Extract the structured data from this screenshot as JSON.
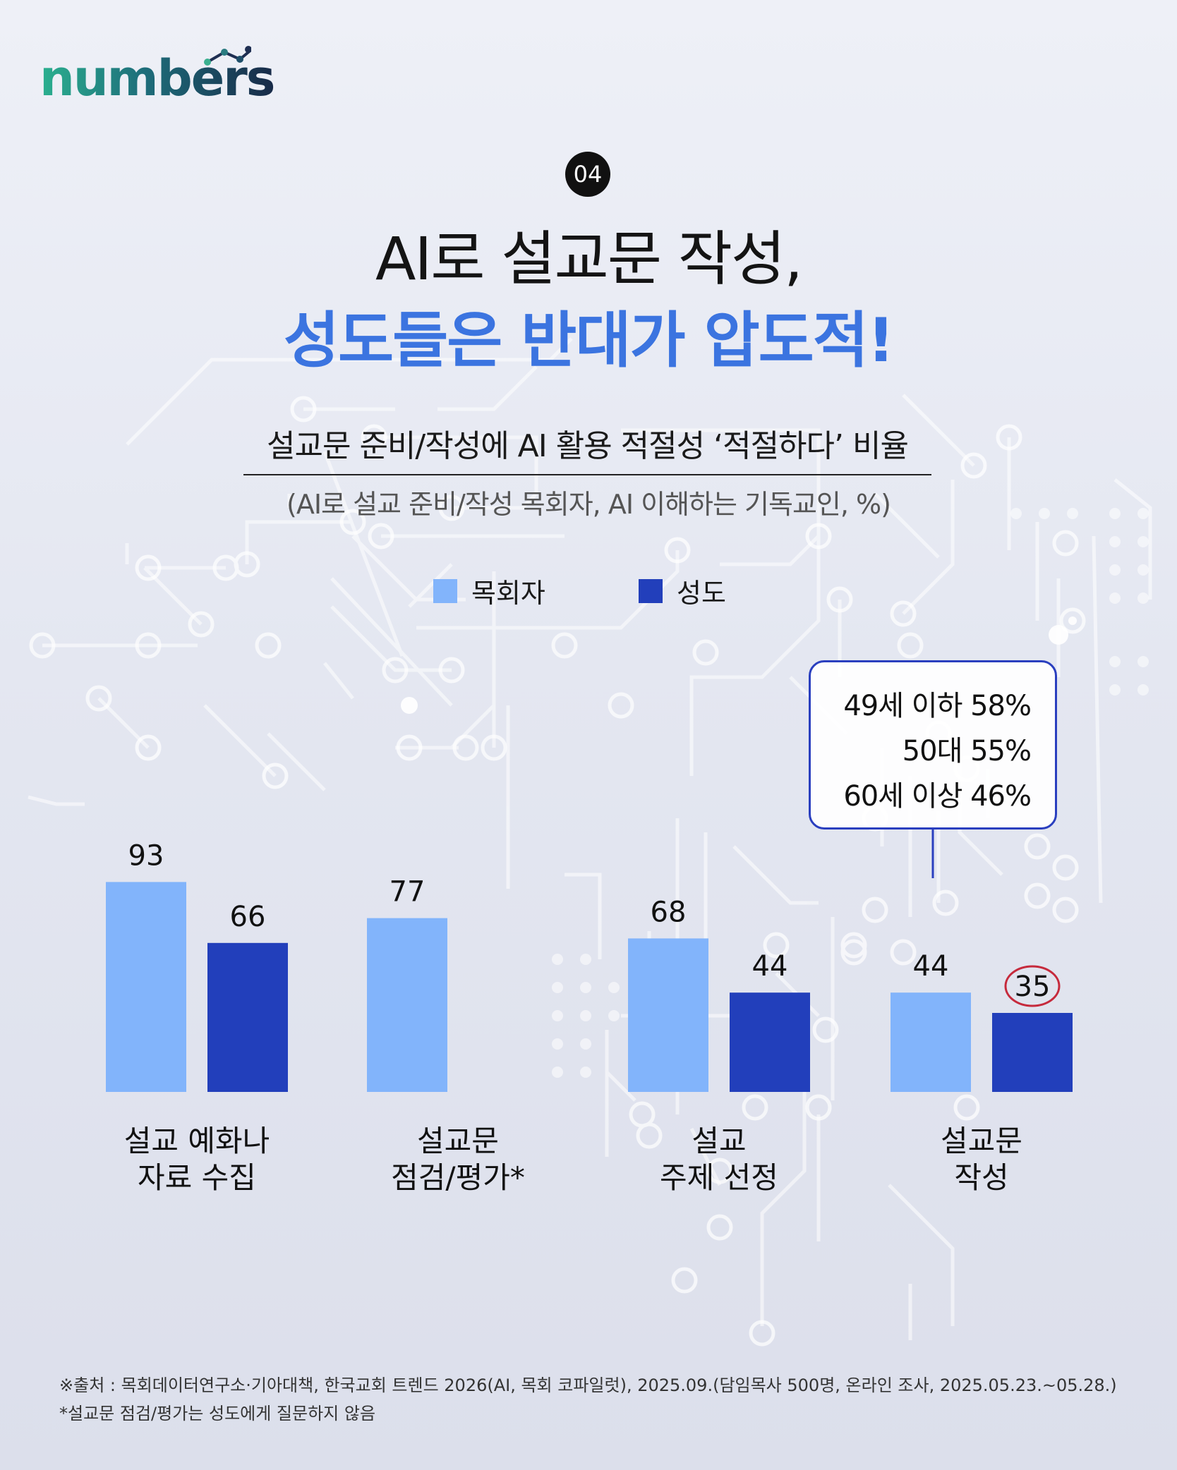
{
  "logo": {
    "text": "numbers"
  },
  "badge": {
    "number": "04"
  },
  "title": {
    "line1": "AI로 설교문 작성,",
    "line2": "성도들은 반대가 압도적!"
  },
  "subtitle": "설교문 준비/작성에 AI 활용 적절성 ‘적절하다’ 비율",
  "unit_note": "(AI로 설교 준비/작성 목회자, AI 이해하는 기독교인, %)",
  "legend": [
    {
      "label": "목회자",
      "color": "#82b4fb"
    },
    {
      "label": "성도",
      "color": "#223fbb"
    }
  ],
  "chart_data": {
    "type": "bar",
    "categories": [
      [
        "설교 예화나",
        "자료 수집"
      ],
      [
        "설교문",
        "점검/평가*"
      ],
      [
        "설교",
        "주제 선정"
      ],
      [
        "설교문",
        "작성"
      ]
    ],
    "series": [
      {
        "name": "목회자",
        "values": [
          93,
          77,
          68,
          44
        ],
        "color": "#82b4fb"
      },
      {
        "name": "성도",
        "values": [
          66,
          null,
          44,
          35
        ],
        "color": "#223fbb"
      }
    ],
    "value_labels": [
      [
        "93",
        "77",
        "68",
        "44"
      ],
      [
        "66",
        "",
        "44",
        "35"
      ]
    ],
    "highlight": {
      "series": 1,
      "category": 3,
      "color": "#c62a3c"
    },
    "ylim": [
      0,
      100
    ],
    "title": "",
    "xlabel": "",
    "ylabel": ""
  },
  "callout": {
    "lines": [
      "49세 이하  58%",
      "50대  55%",
      "60세 이상 46%"
    ]
  },
  "footnotes": [
    "※출처 : 목회데이터연구소·기아대책, 한국교회 트렌드 2026(AI, 목회 코파일럿), 2025.09.(담임목사 500명, 온라인 조사, 2025.05.23.~05.28.)",
    "*설교문 점검/평가는 성도에게 질문하지 않음"
  ]
}
